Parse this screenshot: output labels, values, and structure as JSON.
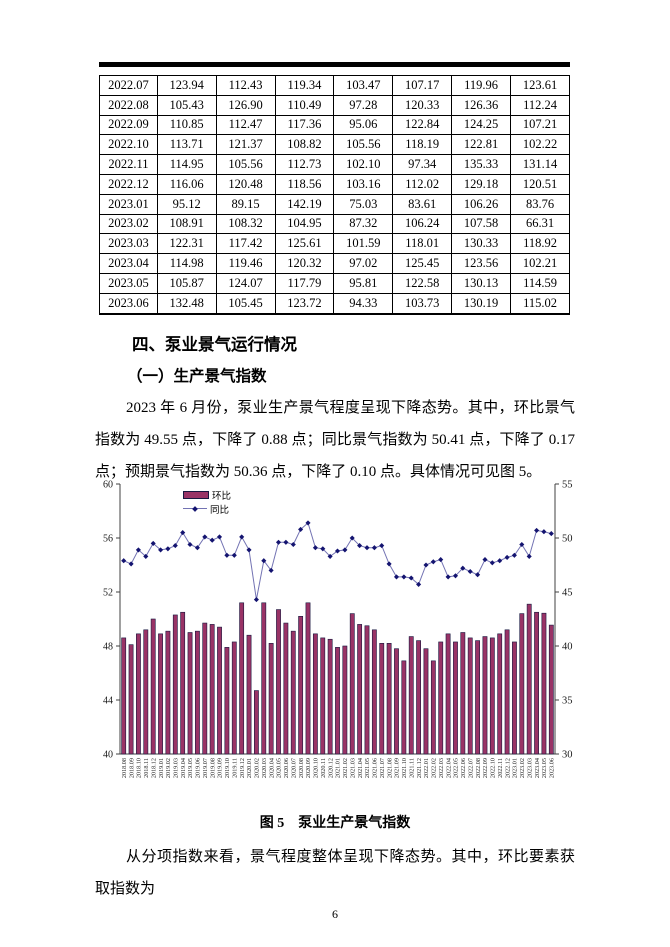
{
  "document": {
    "section_heading": "四、泵业景气运行情况",
    "subsection_heading": "（一）生产景气指数",
    "paragraph_1": "2023 年 6 月份，泵业生产景气程度呈现下降态势。其中，环比景气指数为 49.55 点，下降了 0.88 点；同比景气指数为 50.41 点，下降了 0.17 点；预期景气指数为 50.36 点，下降了 0.10 点。具体情况可见图 5。",
    "figure_caption": "图 5　泵业生产景气指数",
    "paragraph_2": "从分项指数来看，景气程度整体呈现下降态势。其中，环比要素获取指数为",
    "page_number": "6"
  },
  "table": {
    "rows": [
      [
        "2022.07",
        "123.94",
        "112.43",
        "119.34",
        "103.47",
        "107.17",
        "119.96",
        "123.61"
      ],
      [
        "2022.08",
        "105.43",
        "126.90",
        "110.49",
        "97.28",
        "120.33",
        "126.36",
        "112.24"
      ],
      [
        "2022.09",
        "110.85",
        "112.47",
        "117.36",
        "95.06",
        "122.84",
        "124.25",
        "107.21"
      ],
      [
        "2022.10",
        "113.71",
        "121.37",
        "108.82",
        "105.56",
        "118.19",
        "122.81",
        "102.22"
      ],
      [
        "2022.11",
        "114.95",
        "105.56",
        "112.73",
        "102.10",
        "97.34",
        "135.33",
        "131.14"
      ],
      [
        "2022.12",
        "116.06",
        "120.48",
        "118.56",
        "103.16",
        "112.02",
        "129.18",
        "120.51"
      ],
      [
        "2023.01",
        "95.12",
        "89.15",
        "142.19",
        "75.03",
        "83.61",
        "106.26",
        "83.76"
      ],
      [
        "2023.02",
        "108.91",
        "108.32",
        "104.95",
        "87.32",
        "106.24",
        "107.58",
        "66.31"
      ],
      [
        "2023.03",
        "122.31",
        "117.42",
        "125.61",
        "101.59",
        "118.01",
        "130.33",
        "118.92"
      ],
      [
        "2023.04",
        "114.98",
        "119.46",
        "120.32",
        "97.02",
        "125.45",
        "123.56",
        "102.21"
      ],
      [
        "2023.05",
        "105.87",
        "124.07",
        "117.79",
        "95.81",
        "122.58",
        "130.13",
        "114.59"
      ],
      [
        "2023.06",
        "132.48",
        "105.45",
        "123.72",
        "94.33",
        "103.73",
        "130.19",
        "115.02"
      ]
    ]
  },
  "chart_data": {
    "type": "bar+line",
    "title": "泵业生产景气指数",
    "grid": false,
    "legend_position": "top-left-inside",
    "left_axis": {
      "min": 40,
      "max": 60,
      "ticks": [
        60,
        56,
        52,
        48,
        44,
        40
      ]
    },
    "right_axis": {
      "min": 30,
      "max": 55,
      "ticks": [
        55,
        50,
        45,
        40,
        35,
        30
      ]
    },
    "categories": [
      "2018.08",
      "2018.09",
      "2018.10",
      "2018.11",
      "2018.12",
      "2019.01",
      "2019.02",
      "2019.03",
      "2019.04",
      "2019.05",
      "2019.06",
      "2019.07",
      "2019.08",
      "2019.09",
      "2019.10",
      "2019.11",
      "2019.12",
      "2020.01",
      "2020.02",
      "2020.03",
      "2020.04",
      "2020.05",
      "2020.06",
      "2020.07",
      "2020.08",
      "2020.09",
      "2020.10",
      "2020.11",
      "2020.12",
      "2021.01",
      "2021.02",
      "2021.03",
      "2021.04",
      "2021.05",
      "2021.06",
      "2021.07",
      "2021.08",
      "2021.09",
      "2021.10",
      "2021.11",
      "2021.12",
      "2022.01",
      "2022.02",
      "2022.03",
      "2022.04",
      "2022.05",
      "2022.06",
      "2022.07",
      "2022.08",
      "2022.09",
      "2022.10",
      "2022.11",
      "2022.12",
      "2023.01",
      "2023.02",
      "2023.03",
      "2023.04",
      "2023.05",
      "2023.06"
    ],
    "series": [
      {
        "name": "环比",
        "type": "bar",
        "axis": "left",
        "color": "#993366",
        "border_color": "#17173f",
        "values": [
          48.6,
          48.1,
          48.9,
          49.2,
          50.0,
          48.9,
          49.1,
          50.3,
          50.5,
          49.0,
          49.1,
          49.7,
          49.6,
          49.4,
          47.9,
          48.3,
          51.2,
          48.8,
          44.7,
          51.2,
          48.2,
          50.7,
          49.7,
          49.1,
          50.2,
          51.2,
          48.9,
          48.6,
          48.5,
          47.9,
          48.0,
          50.4,
          49.6,
          49.5,
          49.2,
          48.2,
          48.2,
          47.8,
          46.9,
          48.7,
          48.4,
          47.8,
          46.9,
          48.3,
          48.9,
          48.3,
          49.0,
          48.6,
          48.4,
          48.7,
          48.6,
          48.9,
          49.2,
          48.3,
          50.4,
          51.1,
          50.5,
          50.43,
          49.55
        ]
      },
      {
        "name": "同比",
        "type": "line",
        "axis": "right",
        "color": "#7373b3",
        "marker": "diamond",
        "marker_color": "#141470",
        "values": [
          47.9,
          47.6,
          48.9,
          48.3,
          49.5,
          48.9,
          49.0,
          49.3,
          50.5,
          49.4,
          49.1,
          50.1,
          49.8,
          50.1,
          48.4,
          48.4,
          50.1,
          48.9,
          44.3,
          47.9,
          47.0,
          49.6,
          49.6,
          49.4,
          50.8,
          51.4,
          49.1,
          49.0,
          48.3,
          48.8,
          48.9,
          50.0,
          49.3,
          49.1,
          49.1,
          49.3,
          47.6,
          46.4,
          46.4,
          46.3,
          45.7,
          47.5,
          47.8,
          48.0,
          46.4,
          46.5,
          47.2,
          46.9,
          46.6,
          48.0,
          47.7,
          47.9,
          48.2,
          48.4,
          49.4,
          48.3,
          50.7,
          50.58,
          50.41
        ]
      }
    ]
  }
}
